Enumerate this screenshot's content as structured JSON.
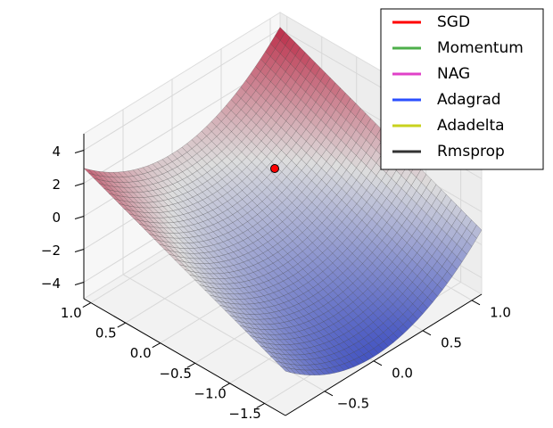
{
  "chart_data": {
    "type": "surface3d",
    "xlim": [
      -1.8,
      1.1
    ],
    "ylim": [
      -0.9,
      1.1
    ],
    "zlim": [
      -5,
      5
    ],
    "xticks": [
      {
        "value": 1,
        "label": "1.0"
      },
      {
        "value": 0.5,
        "label": "0.5"
      },
      {
        "value": 0,
        "label": "0.0"
      },
      {
        "value": -0.5,
        "label": "−0.5"
      },
      {
        "value": -1,
        "label": "−1.0"
      },
      {
        "value": -1.5,
        "label": "−1.5"
      }
    ],
    "yticks": [
      {
        "value": -0.5,
        "label": "−0.5"
      },
      {
        "value": 0,
        "label": "0.0"
      },
      {
        "value": 0.5,
        "label": "0.5"
      },
      {
        "value": 1,
        "label": "1.0"
      }
    ],
    "zticks": [
      {
        "value": -4,
        "label": "−4"
      },
      {
        "value": -2,
        "label": "−2"
      },
      {
        "value": 0,
        "label": "0"
      },
      {
        "value": 2,
        "label": "2"
      },
      {
        "value": 4,
        "label": "4"
      }
    ],
    "grid": true,
    "legend": "upper right",
    "series": [
      {
        "name": "SGD",
        "color": "#ff0000"
      },
      {
        "name": "Momentum",
        "color": "#4daf4a"
      },
      {
        "name": "NAG",
        "color": "#e041c8"
      },
      {
        "name": "Adagrad",
        "color": "#2b4fff"
      },
      {
        "name": "Adadelta",
        "color": "#c8d21e"
      },
      {
        "name": "Rmsprop",
        "color": "#333333"
      }
    ]
  }
}
